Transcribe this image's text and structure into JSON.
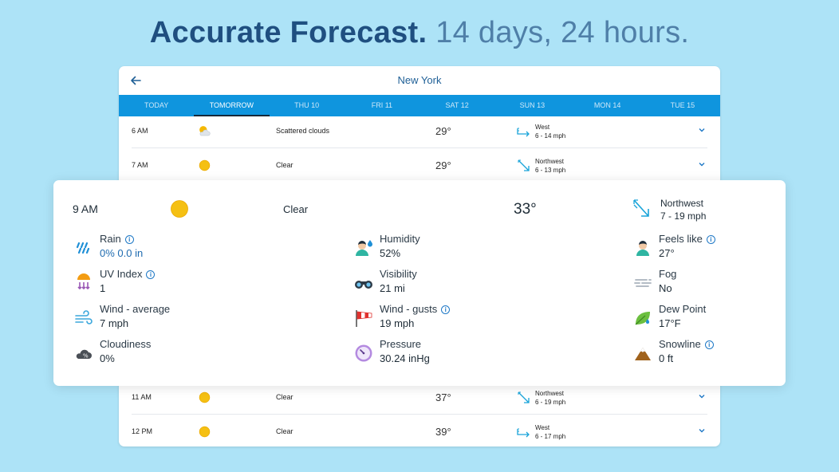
{
  "headline": {
    "strong": "Accurate Forecast.",
    "light": "14 days, 24 hours."
  },
  "app": {
    "city": "New York",
    "tabs": [
      "TODAY",
      "TOMORROW",
      "THU 10",
      "FRI 11",
      "SAT 12",
      "SUN 13",
      "MON 14",
      "TUE 15"
    ],
    "active_tab": "TOMORROW",
    "rows": [
      {
        "time": "6 AM",
        "icon": "sun-cloud-icon",
        "desc": "Scattered clouds",
        "temp": "29°",
        "wind_dir": "West",
        "wind": "6 - 14 mph"
      },
      {
        "time": "7 AM",
        "icon": "sun-icon",
        "desc": "Clear",
        "temp": "29°",
        "wind_dir": "Northwest",
        "wind": "6 - 13 mph"
      },
      {
        "time": "11 AM",
        "icon": "sun-icon",
        "desc": "Clear",
        "temp": "37°",
        "wind_dir": "Northwest",
        "wind": "6 - 19 mph"
      },
      {
        "time": "12 PM",
        "icon": "sun-icon",
        "desc": "Clear",
        "temp": "39°",
        "wind_dir": "West",
        "wind": "6 - 17 mph"
      }
    ]
  },
  "detail": {
    "time": "9 AM",
    "desc": "Clear",
    "temp": "33°",
    "wind_dir": "Northwest",
    "wind": "7 - 19 mph",
    "metrics": {
      "rain": {
        "label": "Rain",
        "value": "0%  0.0 in"
      },
      "humidity": {
        "label": "Humidity",
        "value": "52%"
      },
      "feels_like": {
        "label": "Feels like",
        "value": "27°"
      },
      "uv_index": {
        "label": "UV Index",
        "value": "1"
      },
      "visibility": {
        "label": "Visibility",
        "value": "21 mi"
      },
      "fog": {
        "label": "Fog",
        "value": "No"
      },
      "wind_avg": {
        "label": "Wind - average",
        "value": "7 mph"
      },
      "wind_gusts": {
        "label": "Wind - gusts",
        "value": "19 mph"
      },
      "dew_point": {
        "label": "Dew Point",
        "value": "17°F"
      },
      "cloudiness": {
        "label": "Cloudiness",
        "value": "0%"
      },
      "pressure": {
        "label": "Pressure",
        "value": "30.24 inHg"
      },
      "snowline": {
        "label": "Snowline",
        "value": "0 ft"
      }
    }
  },
  "colors": {
    "background": "#ade3f7",
    "tab_bar": "#0f95de",
    "accent": "#1e6bb0",
    "headline_dark": "#1f4f80",
    "headline_light": "#4f7fa8"
  }
}
